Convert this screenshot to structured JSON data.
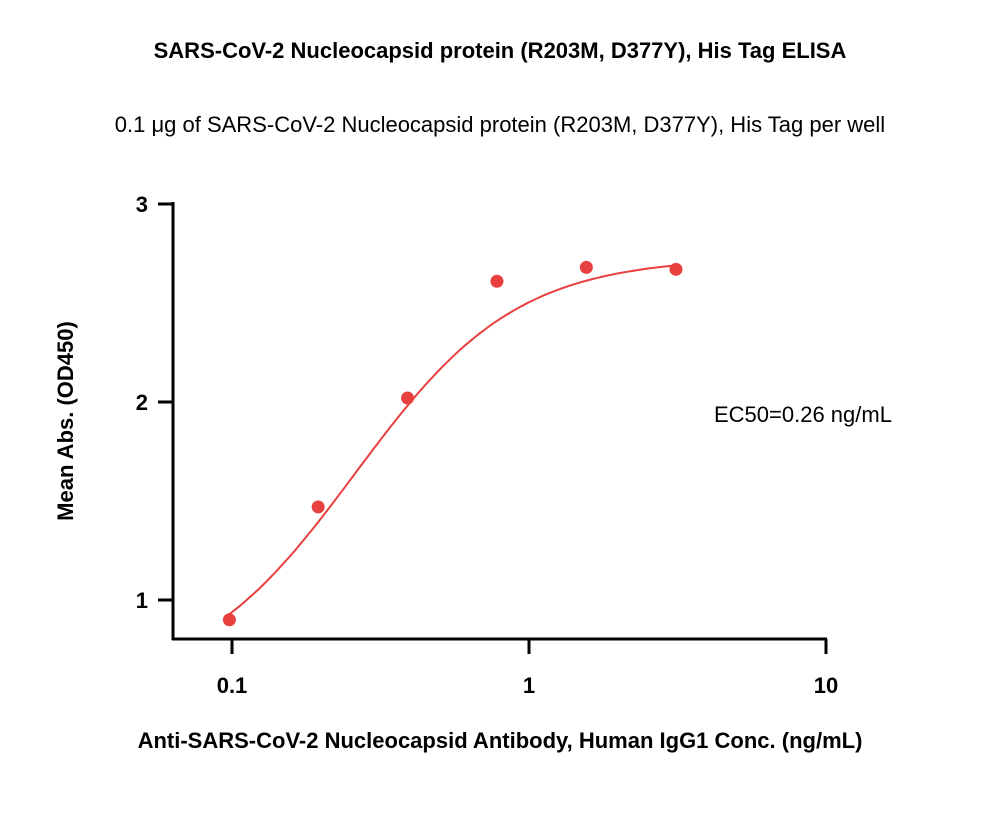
{
  "chart_data": {
    "type": "scatter",
    "title": "SARS-CoV-2 Nucleocapsid protein (R203M, D377Y), His Tag ELISA",
    "subtitle": "0.1 μg of SARS-CoV-2 Nucleocapsid protein (R203M, D377Y), His Tag per well",
    "xlabel": "Anti-SARS-CoV-2 Nucleocapsid Antibody, Human IgG1 Conc. (ng/mL)",
    "ylabel": "Mean Abs. (OD450)",
    "x_scale": "log",
    "xlim": [
      0.05,
      10
    ],
    "ylim": [
      0.8,
      3
    ],
    "x_ticks": [
      0.1,
      1,
      10
    ],
    "x_tick_labels": [
      "0.1",
      "1",
      "10"
    ],
    "y_ticks": [
      1,
      2,
      3
    ],
    "y_tick_labels": [
      "1",
      "2",
      "3"
    ],
    "series": [
      {
        "x": [
          0.098,
          0.195,
          0.39,
          0.78,
          1.56,
          3.125
        ],
        "y": [
          0.9,
          1.47,
          2.02,
          2.61,
          2.68,
          2.67
        ],
        "color": "#e8403f",
        "fit": "4PL",
        "fit_params": {
          "bottom": 0.55,
          "top": 2.73,
          "ec50": 0.26,
          "hill": 1.6
        }
      }
    ],
    "annotations": [
      {
        "text": "EC50=0.26 ng/mL"
      }
    ],
    "grid": false,
    "legend": "none"
  }
}
